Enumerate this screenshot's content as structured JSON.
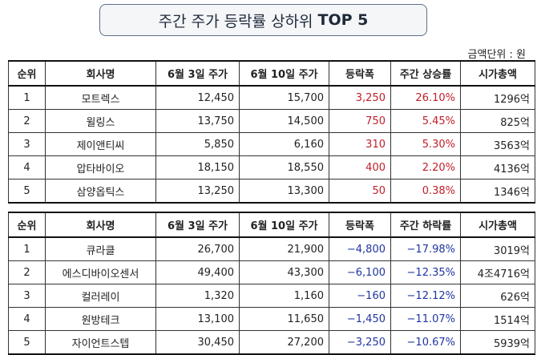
{
  "title": {
    "korean": "주간 주가 등락률 상하위",
    "english": "TOP 5"
  },
  "unit_note": "금액단위 : 원",
  "colors": {
    "rise": "#c0202a",
    "fall": "#1f35a0"
  },
  "rise_table": {
    "headers": [
      "순위",
      "회사명",
      "6월 3일 주가",
      "6월 10일 주가",
      "등락폭",
      "주간 상승률",
      "시가총액"
    ],
    "rows": [
      {
        "rank": "1",
        "company": "모트렉스",
        "jun3": "12,450",
        "jun10": "15,700",
        "change": "3,250",
        "rate": "26.10%",
        "market_cap": "1296억"
      },
      {
        "rank": "2",
        "company": "윌링스",
        "jun3": "13,750",
        "jun10": "14,500",
        "change": "750",
        "rate": "5.45%",
        "market_cap": "825억"
      },
      {
        "rank": "3",
        "company": "제이앤티씨",
        "jun3": "5,850",
        "jun10": "6,160",
        "change": "310",
        "rate": "5.30%",
        "market_cap": "3563억"
      },
      {
        "rank": "4",
        "company": "압타바이오",
        "jun3": "18,150",
        "jun10": "18,550",
        "change": "400",
        "rate": "2.20%",
        "market_cap": "4136억"
      },
      {
        "rank": "5",
        "company": "삼양옵틱스",
        "jun3": "13,250",
        "jun10": "13,300",
        "change": "50",
        "rate": "0.38%",
        "market_cap": "1346억"
      }
    ]
  },
  "fall_table": {
    "headers": [
      "순위",
      "회사명",
      "6월 3일 주가",
      "6월 10일 주가",
      "등락폭",
      "주간 하락률",
      "시가총액"
    ],
    "rows": [
      {
        "rank": "1",
        "company": "큐라클",
        "jun3": "26,700",
        "jun10": "21,900",
        "change": "−4,800",
        "rate": "−17.98%",
        "market_cap": "3019억"
      },
      {
        "rank": "2",
        "company": "에스디바이오센서",
        "jun3": "49,400",
        "jun10": "43,300",
        "change": "−6,100",
        "rate": "−12.35%",
        "market_cap": "4조4716억"
      },
      {
        "rank": "3",
        "company": "컬러레이",
        "jun3": "1,320",
        "jun10": "1,160",
        "change": "−160",
        "rate": "−12.12%",
        "market_cap": "626억"
      },
      {
        "rank": "4",
        "company": "원방테크",
        "jun3": "13,100",
        "jun10": "11,650",
        "change": "−1,450",
        "rate": "−11.07%",
        "market_cap": "1514억"
      },
      {
        "rank": "5",
        "company": "자이언트스텝",
        "jun3": "30,450",
        "jun10": "27,200",
        "change": "−3,250",
        "rate": "−10.67%",
        "market_cap": "5939억"
      }
    ]
  }
}
